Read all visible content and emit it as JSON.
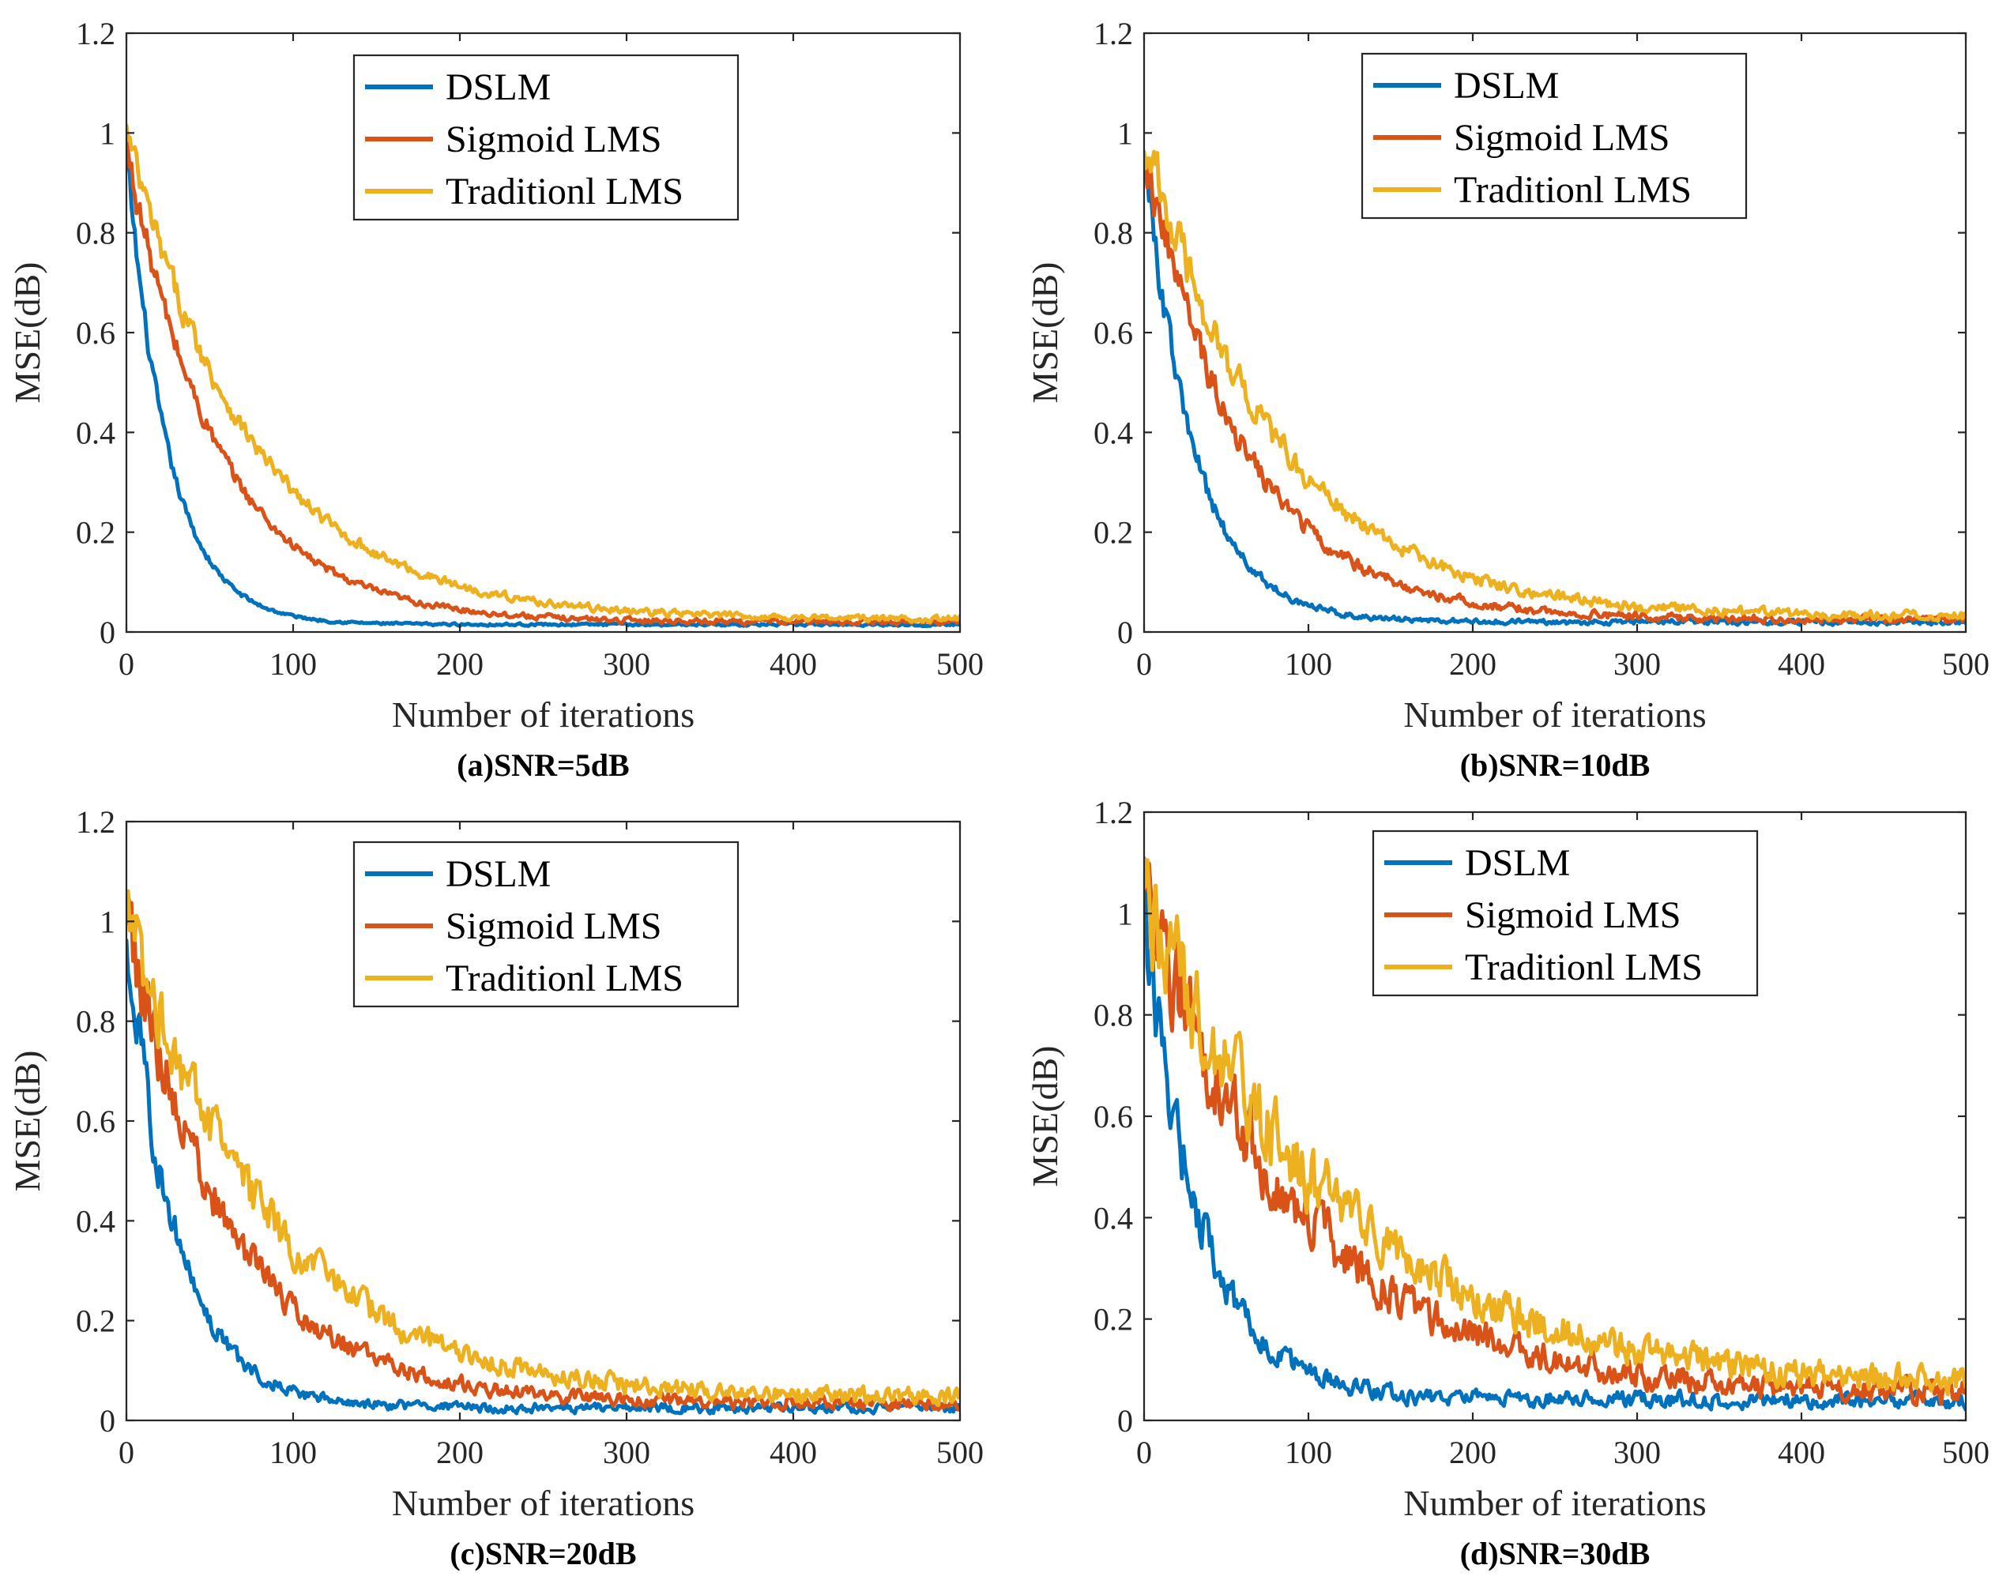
{
  "colors": {
    "DSLM": "#0072BD",
    "Sigmoid LMS": "#D95319",
    "Traditionl LMS": "#EDB120"
  },
  "chart_data": [
    {
      "type": "line",
      "caption": "(a)SNR=5dB",
      "xlabel": "Number of iterations",
      "ylabel": "MSE(dB)",
      "xlim": [
        0,
        500
      ],
      "ylim": [
        0,
        1.2
      ],
      "xticks": [
        "0",
        "100",
        "200",
        "300",
        "400",
        "500"
      ],
      "yticks": [
        "0",
        "0.2",
        "0.4",
        "0.6",
        "0.8",
        "1",
        "1.2"
      ],
      "legend_position": "top-center",
      "series": [
        {
          "name": "DSLM",
          "start": 0.96,
          "tau": 25,
          "floor": 0.015,
          "noise": 0.004
        },
        {
          "name": "Sigmoid LMS",
          "start": 0.97,
          "tau": 55,
          "floor": 0.02,
          "noise": 0.008
        },
        {
          "name": "Traditionl LMS",
          "start": 1.0,
          "tau": 75,
          "floor": 0.025,
          "noise": 0.01
        }
      ]
    },
    {
      "type": "line",
      "caption": "(b)SNR=10dB",
      "xlabel": "Number of iterations",
      "ylabel": "MSE(dB)",
      "xlim": [
        0,
        500
      ],
      "ylim": [
        0,
        1.2
      ],
      "xticks": [
        "0",
        "100",
        "200",
        "300",
        "400",
        "500"
      ],
      "yticks": [
        "0",
        "0.2",
        "0.4",
        "0.6",
        "0.8",
        "1",
        "1.2"
      ],
      "legend_position": "top-center",
      "series": [
        {
          "name": "DSLM",
          "start": 0.97,
          "tau": 30,
          "floor": 0.02,
          "noise": 0.008
        },
        {
          "name": "Sigmoid LMS",
          "start": 0.98,
          "tau": 60,
          "floor": 0.025,
          "noise": 0.012
        },
        {
          "name": "Traditionl LMS",
          "start": 1.0,
          "tau": 80,
          "floor": 0.03,
          "noise": 0.014
        }
      ]
    },
    {
      "type": "line",
      "caption": "(c)SNR=20dB",
      "xlabel": "Number of iterations",
      "ylabel": "MSE(dB)",
      "xlim": [
        0,
        500
      ],
      "ylim": [
        0,
        1.2
      ],
      "xticks": [
        "0",
        "100",
        "200",
        "300",
        "400",
        "500"
      ],
      "yticks": [
        "0",
        "0.2",
        "0.4",
        "0.6",
        "0.8",
        "1",
        "1.2"
      ],
      "legend_position": "top-center",
      "series": [
        {
          "name": "DSLM",
          "start": 0.97,
          "tau": 30,
          "floor": 0.025,
          "noise": 0.015
        },
        {
          "name": "Sigmoid LMS",
          "start": 1.0,
          "tau": 62,
          "floor": 0.035,
          "noise": 0.02
        },
        {
          "name": "Traditionl LMS",
          "start": 1.03,
          "tau": 85,
          "floor": 0.045,
          "noise": 0.025
        }
      ]
    },
    {
      "type": "line",
      "caption": "(d)SNR=30dB",
      "xlabel": "Number of iterations",
      "ylabel": "MSE(dB)",
      "xlim": [
        0,
        500
      ],
      "ylim": [
        0,
        1.2
      ],
      "xticks": [
        "0",
        "100",
        "200",
        "300",
        "400",
        "500"
      ],
      "yticks": [
        "0",
        "0.2",
        "0.4",
        "0.6",
        "0.8",
        "1",
        "1.2"
      ],
      "legend_position": "top-left",
      "series": [
        {
          "name": "DSLM",
          "start": 0.98,
          "tau": 35,
          "floor": 0.04,
          "noise": 0.025
        },
        {
          "name": "Sigmoid LMS",
          "start": 1.04,
          "tau": 95,
          "floor": 0.05,
          "noise": 0.035
        },
        {
          "name": "Traditionl LMS",
          "start": 1.03,
          "tau": 120,
          "floor": 0.06,
          "noise": 0.04
        }
      ]
    }
  ]
}
